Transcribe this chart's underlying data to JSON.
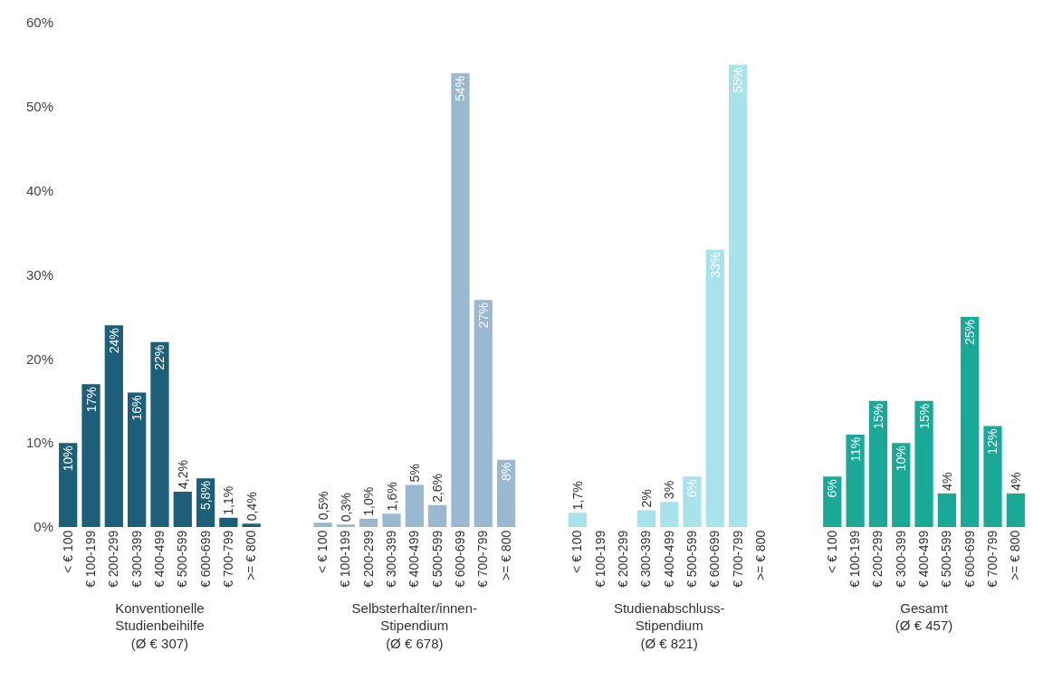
{
  "chart_data": [
    {
      "type": "bar",
      "xlabel": "Konventionelle\nStudienbeihilfe\n(Ø € 307)",
      "categories": [
        "< € 100",
        "€ 100-199",
        "€ 200-299",
        "€ 300-399",
        "€ 400-499",
        "€ 500-599",
        "€ 600-699",
        "€ 700-799",
        ">= € 800"
      ],
      "values": [
        10,
        17,
        24,
        16,
        22,
        4.2,
        5.8,
        1.1,
        0.4
      ],
      "value_labels": [
        "10%",
        "17%",
        "24%",
        "16%",
        "22%",
        "4,2%",
        "5,8%",
        "1,1%",
        "0,4%"
      ],
      "color": "#1d5f78",
      "ylim": [
        0,
        60
      ],
      "yticks": [
        {
          "value": 0,
          "label": "0%"
        },
        {
          "value": 10,
          "label": "10%"
        },
        {
          "value": 20,
          "label": "20%"
        },
        {
          "value": 30,
          "label": "30%"
        },
        {
          "value": 40,
          "label": "40%"
        },
        {
          "value": 50,
          "label": "50%"
        },
        {
          "value": 60,
          "label": "60%"
        }
      ]
    },
    {
      "type": "bar",
      "xlabel": "Selbsterhalter/innen-\nStipendium\n(Ø € 678)",
      "categories": [
        "< € 100",
        "€ 100-199",
        "€ 200-299",
        "€ 300-399",
        "€ 400-499",
        "€ 500-599",
        "€ 600-699",
        "€ 700-799",
        ">= € 800"
      ],
      "values": [
        0.5,
        0.3,
        1.0,
        1.6,
        5,
        2.6,
        54,
        27,
        8
      ],
      "value_labels": [
        "0,5%",
        "0,3%",
        "1,0%",
        "1,6%",
        "5%",
        "2,6%",
        "54%",
        "27%",
        "8%"
      ],
      "color": "#9ab8d0",
      "ylim": [
        0,
        60
      ],
      "tick_labels": "x"
    },
    {
      "type": "bar",
      "xlabel": "Studienabschluss-\nStipendium\n(Ø € 821)",
      "categories": [
        "< € 100",
        "€ 100-199",
        "€ 200-299",
        "€ 300-399",
        "€ 400-499",
        "€ 500-599",
        "€ 600-699",
        "€ 700-799",
        ">= € 800"
      ],
      "values": [
        1.7,
        0,
        0,
        2,
        3,
        6,
        33,
        55,
        0
      ],
      "value_labels": [
        "1,7%",
        null,
        null,
        "2%",
        "3%",
        "6%",
        "33%",
        "55%",
        null
      ],
      "color": "#a8e3ec",
      "ylim": [
        0,
        60
      ],
      "tick_labels": "x"
    },
    {
      "type": "bar",
      "xlabel": "Gesamt\n(Ø € 457)",
      "categories": [
        "< € 100",
        "€ 100-199",
        "€ 200-299",
        "€ 300-399",
        "€ 400-499",
        "€ 500-599",
        "€ 600-699",
        "€ 700-799",
        ">= € 800"
      ],
      "values": [
        6,
        11,
        15,
        10,
        15,
        4,
        25,
        12,
        4
      ],
      "value_labels": [
        "6%",
        "11%",
        "15%",
        "10%",
        "15%",
        "4%",
        "25%",
        "12%",
        "4%"
      ],
      "color": "#1aa897",
      "ylim": [
        0,
        60
      ],
      "tick_labels": "x"
    }
  ]
}
